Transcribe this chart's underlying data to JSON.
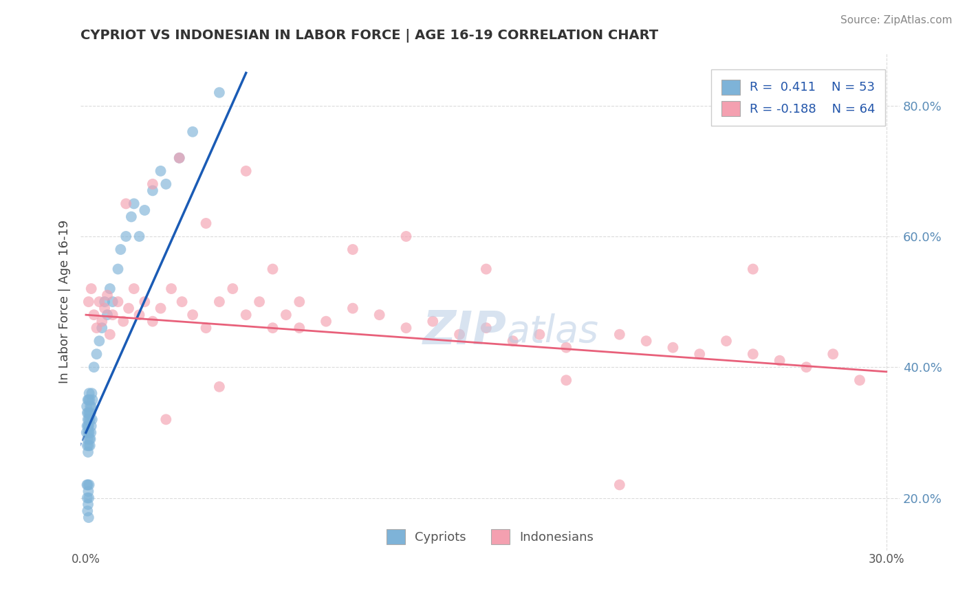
{
  "title": "CYPRIOT VS INDONESIAN IN LABOR FORCE | AGE 16-19 CORRELATION CHART",
  "source_text": "Source: ZipAtlas.com",
  "ylabel": "In Labor Force | Age 16-19",
  "xlim": [
    -0.002,
    0.305
  ],
  "ylim": [
    0.12,
    0.88
  ],
  "yticks": [
    0.2,
    0.4,
    0.6,
    0.8
  ],
  "ytick_labels": [
    "20.0%",
    "40.0%",
    "60.0%",
    "80.0%"
  ],
  "legend_r1": "R =  0.411",
  "legend_n1": "N = 53",
  "legend_r2": "R = -0.188",
  "legend_n2": "N = 64",
  "blue_color": "#7EB3D8",
  "pink_color": "#F4A0B0",
  "blue_line_color": "#1A5BB5",
  "pink_line_color": "#E8607A",
  "watermark_color": "#B8CCE4",
  "grid_color": "#CCCCCC",
  "title_fontsize": 14,
  "cypriot_x": [
    0.0002,
    0.0003,
    0.0004,
    0.0005,
    0.0005,
    0.0006,
    0.0007,
    0.0007,
    0.0008,
    0.0008,
    0.0009,
    0.0009,
    0.001,
    0.001,
    0.001,
    0.0011,
    0.0012,
    0.0012,
    0.0013,
    0.0013,
    0.0014,
    0.0015,
    0.0015,
    0.0016,
    0.0017,
    0.0018,
    0.0019,
    0.002,
    0.002,
    0.0022,
    0.0023,
    0.0025,
    0.003,
    0.004,
    0.005,
    0.006,
    0.007,
    0.008,
    0.009,
    0.01,
    0.012,
    0.013,
    0.015,
    0.017,
    0.018,
    0.02,
    0.022,
    0.025,
    0.028,
    0.03,
    0.035,
    0.04,
    0.05
  ],
  "cypriot_y": [
    0.3,
    0.34,
    0.31,
    0.28,
    0.33,
    0.29,
    0.32,
    0.35,
    0.27,
    0.31,
    0.3,
    0.33,
    0.28,
    0.31,
    0.35,
    0.32,
    0.3,
    0.36,
    0.29,
    0.33,
    0.35,
    0.28,
    0.32,
    0.34,
    0.29,
    0.33,
    0.3,
    0.34,
    0.31,
    0.36,
    0.32,
    0.35,
    0.4,
    0.42,
    0.44,
    0.46,
    0.5,
    0.48,
    0.52,
    0.5,
    0.55,
    0.58,
    0.6,
    0.63,
    0.65,
    0.6,
    0.64,
    0.67,
    0.7,
    0.68,
    0.72,
    0.76,
    0.82
  ],
  "cypriot_extra_x": [
    0.0004,
    0.0005,
    0.0006,
    0.0007,
    0.0008,
    0.0009,
    0.001,
    0.0011,
    0.0012
  ],
  "cypriot_extra_y": [
    0.22,
    0.2,
    0.18,
    0.22,
    0.19,
    0.21,
    0.17,
    0.2,
    0.22
  ],
  "indonesian_x": [
    0.001,
    0.002,
    0.003,
    0.004,
    0.005,
    0.006,
    0.007,
    0.008,
    0.009,
    0.01,
    0.012,
    0.014,
    0.016,
    0.018,
    0.02,
    0.022,
    0.025,
    0.028,
    0.032,
    0.036,
    0.04,
    0.045,
    0.05,
    0.055,
    0.06,
    0.065,
    0.07,
    0.075,
    0.08,
    0.09,
    0.1,
    0.11,
    0.12,
    0.13,
    0.14,
    0.15,
    0.16,
    0.17,
    0.18,
    0.2,
    0.21,
    0.22,
    0.23,
    0.24,
    0.25,
    0.26,
    0.27,
    0.28,
    0.29,
    0.015,
    0.025,
    0.035,
    0.045,
    0.1,
    0.15,
    0.2,
    0.25,
    0.12,
    0.18,
    0.06,
    0.08,
    0.03,
    0.05,
    0.07
  ],
  "indonesian_y": [
    0.5,
    0.52,
    0.48,
    0.46,
    0.5,
    0.47,
    0.49,
    0.51,
    0.45,
    0.48,
    0.5,
    0.47,
    0.49,
    0.52,
    0.48,
    0.5,
    0.47,
    0.49,
    0.52,
    0.5,
    0.48,
    0.46,
    0.5,
    0.52,
    0.48,
    0.5,
    0.46,
    0.48,
    0.5,
    0.47,
    0.49,
    0.48,
    0.46,
    0.47,
    0.45,
    0.46,
    0.44,
    0.45,
    0.43,
    0.45,
    0.44,
    0.43,
    0.42,
    0.44,
    0.42,
    0.41,
    0.4,
    0.42,
    0.38,
    0.65,
    0.68,
    0.72,
    0.62,
    0.58,
    0.55,
    0.22,
    0.55,
    0.6,
    0.38,
    0.7,
    0.46,
    0.32,
    0.37,
    0.55
  ],
  "blue_trend_x0": 0.0,
  "blue_trend_x1": 0.06,
  "blue_trend_y0": 0.3,
  "blue_trend_y1": 0.85,
  "pink_trend_x0": 0.0,
  "pink_trend_x1": 0.3,
  "pink_trend_y0": 0.48,
  "pink_trend_y1": 0.393
}
